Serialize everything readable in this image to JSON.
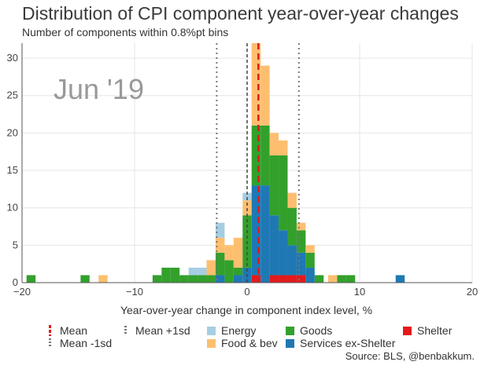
{
  "title": "Distribution of CPI component year-over-year changes",
  "subtitle": "Number of components within 0.8%pt bins",
  "source": "Source: BLS, @benbakkum.",
  "annotation": "Jun '19",
  "colors": {
    "energy": "#a6cee3",
    "food": "#fdbf6f",
    "goods": "#33a02c",
    "services": "#1f78b4",
    "shelter": "#e31a1c",
    "mean_line": "#e31a1c",
    "sd_line": "#777777",
    "zero_line": "#444444"
  },
  "legend": [
    {
      "key": "mean",
      "label": "Mean"
    },
    {
      "key": "sd_plus",
      "label": "Mean +1sd"
    },
    {
      "key": "energy",
      "label": "Energy"
    },
    {
      "key": "goods",
      "label": "Goods"
    },
    {
      "key": "shelter",
      "label": "Shelter"
    },
    {
      "key": "sd_minus",
      "label": "Mean -1sd"
    },
    {
      "key": "food",
      "label": "Food & bev"
    },
    {
      "key": "services",
      "label": "Services ex-Shelter"
    }
  ],
  "chart_data": {
    "type": "bar",
    "stacked": true,
    "bin_width": 0.8,
    "xlabel": "Year-over-year change in component index level, %",
    "ylabel": "",
    "xlim": [
      -20,
      20
    ],
    "ylim": [
      0,
      32
    ],
    "xticks": [
      -20,
      -10,
      0,
      10,
      20
    ],
    "yticks": [
      0,
      5,
      10,
      15,
      20,
      25,
      30
    ],
    "grid": true,
    "legend_position": "bottom",
    "mean": 1.0,
    "mean_minus_1sd": -2.7,
    "mean_plus_1sd": 4.6,
    "bin_starts": [
      -19.6,
      -14.8,
      -13.2,
      -8.4,
      -7.6,
      -6.8,
      -6.0,
      -5.2,
      -4.4,
      -3.6,
      -2.8,
      -2.0,
      -1.2,
      -0.4,
      0.4,
      1.2,
      2.0,
      2.8,
      3.6,
      4.4,
      5.2,
      6.0,
      7.2,
      8.0,
      8.8,
      13.2
    ],
    "series": [
      {
        "name": "Shelter",
        "values": [
          0,
          0,
          0,
          0,
          0,
          0,
          0,
          0,
          0,
          0,
          0,
          0,
          0,
          0,
          1,
          0,
          1,
          1,
          1,
          1,
          0,
          0,
          0,
          0,
          0,
          0
        ]
      },
      {
        "name": "Services ex-Shelter",
        "values": [
          0,
          0,
          0,
          0,
          0,
          0,
          0,
          0,
          0,
          0,
          1,
          0,
          1,
          2,
          12,
          13,
          8,
          6,
          4,
          3,
          2,
          0,
          0,
          0,
          0,
          1
        ]
      },
      {
        "name": "Goods",
        "values": [
          1,
          1,
          0,
          1,
          2,
          2,
          1,
          1,
          1,
          1,
          3,
          3,
          1,
          7,
          8,
          8,
          8,
          10,
          5,
          3,
          2,
          1,
          0,
          1,
          1,
          0
        ]
      },
      {
        "name": "Food & bev",
        "values": [
          0,
          0,
          1,
          0,
          0,
          0,
          0,
          0,
          0,
          2,
          2,
          2,
          4,
          2,
          12,
          8,
          3,
          2,
          2,
          1,
          1,
          0,
          1,
          0,
          0,
          0
        ]
      },
      {
        "name": "Energy",
        "values": [
          0,
          0,
          0,
          0,
          0,
          0,
          0,
          1,
          1,
          0,
          2,
          0,
          0,
          1,
          0,
          0,
          0,
          0,
          0,
          0,
          0,
          0,
          0,
          0,
          0,
          0
        ]
      }
    ]
  }
}
